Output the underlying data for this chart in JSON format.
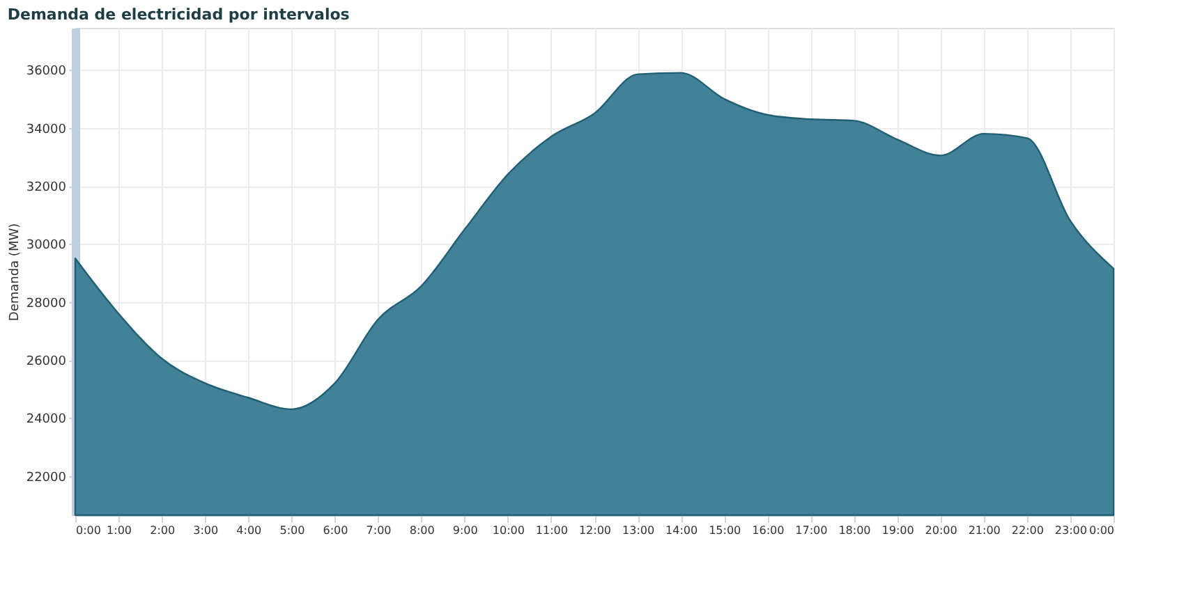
{
  "chart_data": {
    "type": "area",
    "title": "Demanda de electricidad por intervalos",
    "ylabel": "Demanda (MW)",
    "x": [
      0,
      1,
      2,
      3,
      4,
      5,
      6,
      7,
      8,
      9,
      10,
      11,
      12,
      13,
      14,
      15,
      16,
      17,
      18,
      19,
      20,
      21,
      22,
      23,
      24
    ],
    "series": [
      {
        "color": "#3f7f96",
        "values": [
          29500,
          27600,
          26050,
          25200,
          24700,
          24300,
          25200,
          27400,
          28550,
          30500,
          32400,
          33700,
          34500,
          35850,
          35900,
          35000,
          34450,
          34300,
          34250,
          33600,
          33050,
          33800,
          33650,
          30800,
          29150
        ]
      }
    ],
    "xlim": [
      0,
      24
    ],
    "xticks": [
      {
        "value": 0,
        "label": "0:00"
      },
      {
        "value": 1,
        "label": "1:00"
      },
      {
        "value": 2,
        "label": "2:00"
      },
      {
        "value": 3,
        "label": "3:00"
      },
      {
        "value": 4,
        "label": "4:00"
      },
      {
        "value": 5,
        "label": "5:00"
      },
      {
        "value": 6,
        "label": "6:00"
      },
      {
        "value": 7,
        "label": "7:00"
      },
      {
        "value": 8,
        "label": "8:00"
      },
      {
        "value": 9,
        "label": "9:00"
      },
      {
        "value": 10,
        "label": "10:00"
      },
      {
        "value": 11,
        "label": "11:00"
      },
      {
        "value": 12,
        "label": "12:00"
      },
      {
        "value": 13,
        "label": "13:00"
      },
      {
        "value": 14,
        "label": "14:00"
      },
      {
        "value": 15,
        "label": "15:00"
      },
      {
        "value": 16,
        "label": "16:00"
      },
      {
        "value": 17,
        "label": "17:00"
      },
      {
        "value": 18,
        "label": "18:00"
      },
      {
        "value": 19,
        "label": "19:00"
      },
      {
        "value": 20,
        "label": "20:00"
      },
      {
        "value": 21,
        "label": "21:00"
      },
      {
        "value": 22,
        "label": "22:00"
      },
      {
        "value": 23,
        "label": "23:00"
      },
      {
        "value": 24,
        "label": "0:00"
      }
    ],
    "ylim": [
      20650,
      37450
    ],
    "yticks": [
      22000,
      24000,
      26000,
      28000,
      30000,
      32000,
      34000,
      36000
    ],
    "grid": true
  }
}
